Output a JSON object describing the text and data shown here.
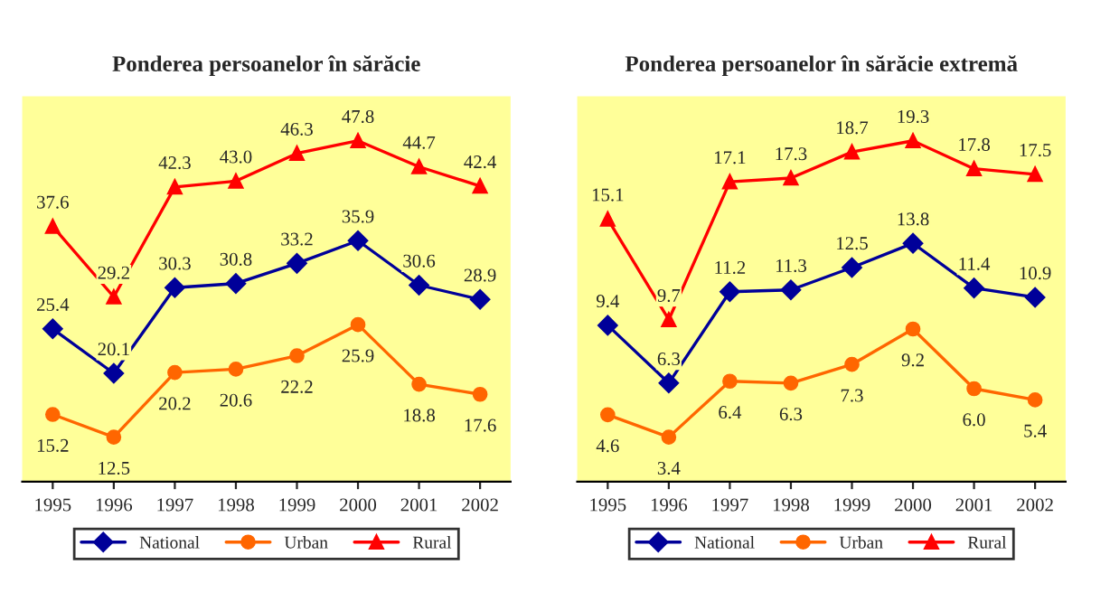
{
  "chart_data": [
    {
      "type": "line",
      "title": "Ponderea persoanelor în sărăcie",
      "categories": [
        "1995",
        "1996",
        "1997",
        "1998",
        "1999",
        "2000",
        "2001",
        "2002"
      ],
      "legend": "bottom",
      "grid": false,
      "series": [
        {
          "name": "National",
          "color": "#000099",
          "marker": "diamond",
          "values": [
            25.4,
            20.1,
            30.3,
            30.8,
            33.2,
            35.9,
            30.6,
            28.9
          ],
          "value_labels": [
            "25.4",
            "20.1",
            "30.3",
            "30.8",
            "33.2",
            "35.9",
            "30.6",
            "28.9"
          ]
        },
        {
          "name": "Urban",
          "color": "#ff6600",
          "marker": "circle",
          "values": [
            15.2,
            12.5,
            20.2,
            20.6,
            22.2,
            25.9,
            18.8,
            17.6
          ],
          "value_labels": [
            "15.2",
            "12.5",
            "20.2",
            "20.6",
            "22.2",
            "25.9",
            "18.8",
            "17.6"
          ]
        },
        {
          "name": "Rural",
          "color": "#ff0000",
          "marker": "triangle",
          "values": [
            37.6,
            29.2,
            42.3,
            43.0,
            46.3,
            47.8,
            44.7,
            42.4
          ],
          "value_labels": [
            "37.6",
            "29.2",
            "42.3",
            "43.0",
            "46.3",
            "47.8",
            "44.7",
            "42.4"
          ]
        }
      ]
    },
    {
      "type": "line",
      "title": "Ponderea persoanelor în sărăcie extremă",
      "categories": [
        "1995",
        "1996",
        "1997",
        "1998",
        "1999",
        "2000",
        "2001",
        "2002"
      ],
      "legend": "bottom",
      "grid": false,
      "series": [
        {
          "name": "National",
          "color": "#000099",
          "marker": "diamond",
          "values": [
            9.4,
            6.3,
            11.2,
            11.3,
            12.5,
            13.8,
            11.4,
            10.9
          ],
          "value_labels": [
            "9.4",
            "6.3",
            "11.2",
            "11.3",
            "12.5",
            "13.8",
            "11.4",
            "10.9"
          ]
        },
        {
          "name": "Urban",
          "color": "#ff6600",
          "marker": "circle",
          "values": [
            4.6,
            3.4,
            6.4,
            6.3,
            7.3,
            9.2,
            6.0,
            5.4
          ],
          "value_labels": [
            "4.6",
            "3.4",
            "6.4",
            "6.3",
            "7.3",
            "9.2",
            "6.0",
            "5.4"
          ]
        },
        {
          "name": "Rural",
          "color": "#ff0000",
          "marker": "triangle",
          "values": [
            15.1,
            9.7,
            17.1,
            17.3,
            18.7,
            19.3,
            17.8,
            17.5
          ],
          "value_labels": [
            "15.1",
            "9.7",
            "17.1",
            "17.3",
            "18.7",
            "19.3",
            "17.8",
            "17.5"
          ]
        }
      ]
    }
  ]
}
